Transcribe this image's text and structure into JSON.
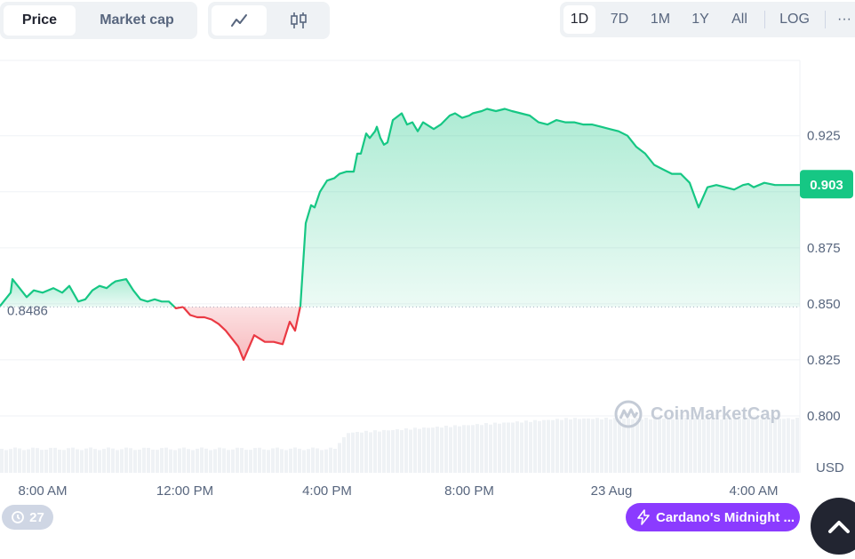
{
  "toolbar": {
    "type_tabs": [
      "Price",
      "Market cap"
    ],
    "active_type": "Price",
    "view_icons": [
      "line-chart-icon",
      "candlestick-icon"
    ],
    "active_view": "line-chart-icon",
    "ranges": [
      "1D",
      "7D",
      "1M",
      "1Y",
      "All"
    ],
    "active_range": "1D",
    "log_label": "LOG",
    "more_label": "···"
  },
  "watermark": "CoinMarketCap",
  "colors": {
    "up": "#16c784",
    "down": "#ea3943",
    "up_fill": "#d3f5e6",
    "down_fill": "#f9c9cc",
    "grid": "#eff2f5",
    "accent_purple": "#8b3bff"
  },
  "footer": {
    "comments_count": "27",
    "news_label": "Cardano's Midnight ..."
  },
  "chart_data": {
    "type": "area",
    "baseline": {
      "value": 0.8486,
      "label": "0.8486"
    },
    "current_price": {
      "value": 0.903,
      "label": "0.903"
    },
    "currency_label": "USD",
    "y_ticks": [
      0.8,
      0.825,
      0.85,
      0.875,
      0.925
    ],
    "y_tick_labels": [
      "0.800",
      "0.825",
      "0.850",
      "0.875",
      "0.925"
    ],
    "ylim": [
      0.7746,
      0.9586
    ],
    "x_range_hours": [
      6.8,
      29.3
    ],
    "x_ticks": [
      {
        "h": 8,
        "label": "8:00 AM"
      },
      {
        "h": 12,
        "label": "12:00 PM"
      },
      {
        "h": 16,
        "label": "4:00 PM"
      },
      {
        "h": 20,
        "label": "8:00 PM"
      },
      {
        "h": 24,
        "label": "23 Aug"
      },
      {
        "h": 28,
        "label": "4:00 AM"
      }
    ],
    "grid": true,
    "series": [
      {
        "x": [
          6.8,
          7.1,
          7.15,
          7.35,
          7.55,
          7.75,
          8.0,
          8.3,
          8.55,
          8.75,
          9.0,
          9.2,
          9.4,
          9.6,
          9.8,
          9.95,
          10.05,
          10.35,
          10.55,
          10.75,
          10.95,
          11.15,
          11.35,
          11.55,
          11.75,
          11.95,
          12.15,
          12.35,
          12.55,
          12.75,
          12.95,
          13.15,
          13.35,
          13.5,
          13.65,
          13.95,
          14.25,
          14.5,
          14.75,
          14.95,
          15.1,
          15.25,
          15.4,
          15.55,
          15.65,
          15.8,
          16.0,
          16.2,
          16.35,
          16.55,
          16.75,
          16.85,
          16.95,
          17.1,
          17.2,
          17.35,
          17.4,
          17.5,
          17.6,
          17.7,
          17.85,
          18.1,
          18.25,
          18.4,
          18.55,
          18.7,
          19.0,
          19.2,
          19.45,
          19.6,
          19.8,
          20.0,
          20.1,
          20.35,
          20.5,
          20.75,
          21.0,
          21.2,
          21.45,
          21.7,
          21.95,
          22.2,
          22.45,
          22.7,
          22.95,
          23.2,
          23.45,
          23.7,
          23.95,
          24.2,
          24.45,
          24.7,
          24.95,
          25.2,
          25.45,
          25.7,
          25.95,
          26.2,
          26.45,
          26.7,
          26.95,
          27.2,
          27.45,
          27.7,
          27.85,
          28.0,
          28.15,
          28.3,
          28.45,
          28.6,
          28.8,
          29.0,
          29.2,
          29.3
        ],
        "y": [
          0.849,
          0.855,
          0.861,
          0.857,
          0.853,
          0.856,
          0.855,
          0.857,
          0.855,
          0.858,
          0.851,
          0.852,
          0.856,
          0.858,
          0.857,
          0.859,
          0.86,
          0.861,
          0.856,
          0.852,
          0.851,
          0.852,
          0.851,
          0.851,
          0.848,
          0.8486,
          0.845,
          0.844,
          0.844,
          0.843,
          0.841,
          0.838,
          0.834,
          0.831,
          0.825,
          0.836,
          0.833,
          0.833,
          0.832,
          0.842,
          0.838,
          0.849,
          0.886,
          0.894,
          0.893,
          0.9,
          0.905,
          0.906,
          0.908,
          0.909,
          0.909,
          0.917,
          0.917,
          0.926,
          0.924,
          0.927,
          0.929,
          0.924,
          0.921,
          0.922,
          0.932,
          0.935,
          0.93,
          0.931,
          0.927,
          0.931,
          0.928,
          0.93,
          0.934,
          0.935,
          0.933,
          0.934,
          0.935,
          0.936,
          0.937,
          0.936,
          0.937,
          0.936,
          0.935,
          0.934,
          0.931,
          0.93,
          0.932,
          0.931,
          0.931,
          0.93,
          0.93,
          0.929,
          0.928,
          0.927,
          0.925,
          0.92,
          0.917,
          0.912,
          0.91,
          0.908,
          0.908,
          0.904,
          0.893,
          0.902,
          0.903,
          0.902,
          0.901,
          0.903,
          0.9035,
          0.902,
          0.903,
          0.904,
          0.9035,
          0.903,
          0.903,
          0.903,
          0.903,
          0.903
        ]
      }
    ]
  }
}
